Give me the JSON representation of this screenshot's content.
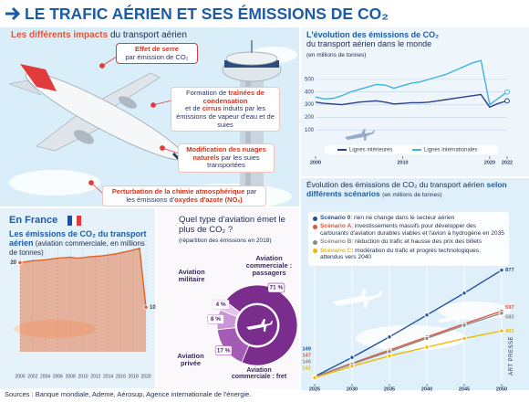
{
  "header": {
    "title": "LE TRAFIC AÉRIEN ET SES ÉMISSIONS DE CO₂"
  },
  "impacts": {
    "title": "Les différents impacts",
    "subtitle": "du transport aérien",
    "items": [
      {
        "segments": [
          "Effet de serre",
          "par émission de CO₂"
        ]
      },
      {
        "segments": [
          "Formation de ",
          "traînées de condensation",
          "et de ",
          "cirrus",
          " induits par les émissions de vapeur d'eau et de suies"
        ]
      },
      {
        "segments": [
          "Modification des nuages naturels",
          " par les suies transportées"
        ]
      },
      {
        "segments": [
          "Perturbation de la chimie atmosphérique",
          " par les émissions d'",
          "oxydes d'azote (NOₓ)"
        ]
      }
    ]
  },
  "chart_data": [
    {
      "type": "line",
      "title": "L'évolution des émissions de CO₂",
      "subtitle": "du transport aérien dans le monde",
      "unit": "(en millions de tonnes)",
      "x": [
        2000,
        2001,
        2002,
        2003,
        2004,
        2005,
        2006,
        2007,
        2008,
        2009,
        2010,
        2011,
        2012,
        2013,
        2014,
        2015,
        2016,
        2017,
        2018,
        2019,
        2020,
        2021,
        2022
      ],
      "xlim": [
        2000,
        2022
      ],
      "xticks": [
        2000,
        2010,
        2020,
        2022
      ],
      "ylim": [
        0,
        680
      ],
      "yticks": [
        100,
        200,
        300,
        400,
        500
      ],
      "grid": true,
      "series": [
        {
          "name": "Lignes intérieures",
          "color": "#2b3f8c",
          "values": [
            320,
            310,
            305,
            300,
            310,
            320,
            325,
            330,
            320,
            305,
            310,
            315,
            315,
            320,
            330,
            340,
            350,
            360,
            370,
            380,
            280,
            310,
            330
          ]
        },
        {
          "name": "Lignes internationales",
          "color": "#3fb3e0",
          "values": [
            360,
            345,
            350,
            370,
            400,
            420,
            440,
            460,
            455,
            430,
            450,
            470,
            480,
            500,
            520,
            540,
            570,
            600,
            630,
            650,
            300,
            350,
            400
          ]
        }
      ]
    },
    {
      "type": "area",
      "header": "En France",
      "title": "Les émissions de CO₂ du transport aérien",
      "subtitle": "(aviation commerciale, en millions de tonnes)",
      "x": [
        2000,
        2001,
        2002,
        2003,
        2004,
        2005,
        2006,
        2007,
        2008,
        2009,
        2010,
        2011,
        2012,
        2013,
        2014,
        2015,
        2016,
        2017,
        2018,
        2019,
        2020
      ],
      "xlim": [
        2000,
        2020
      ],
      "xticks": [
        2000,
        2002,
        2004,
        2006,
        2008,
        2010,
        2012,
        2014,
        2016,
        2018,
        2020
      ],
      "ylim": [
        0,
        25
      ],
      "color": "#e0622a",
      "values": [
        20,
        20.2,
        20.4,
        20.5,
        20.6,
        20.8,
        21,
        21.1,
        21.2,
        21,
        21.1,
        21.3,
        21.4,
        21.5,
        21.7,
        21.9,
        22.2,
        22.5,
        22.8,
        23.2,
        10
      ]
    },
    {
      "type": "pie",
      "title": "Quel type d'aviation émet le plus de CO₂ ?",
      "subtitle": "(répartition des émissions en 2018)",
      "categories": [
        "Aviation commerciale : passagers",
        "Aviation commerciale : fret",
        "Aviation privée",
        "Aviation militaire"
      ],
      "values": [
        71,
        17,
        8,
        4
      ],
      "value_labels": [
        "71 %",
        "17 %",
        "8 %",
        "4 %"
      ],
      "colors": [
        "#7b2d8e",
        "#a35bb5",
        "#c995d6",
        "#e2c6ea"
      ]
    },
    {
      "type": "line",
      "title": "Évolution des émissions de CO₂ du transport aérien",
      "subtitle": "selon différents scénarios",
      "unit": "(en millions de tonnes)",
      "x": [
        2025,
        2030,
        2035,
        2040,
        2045,
        2050
      ],
      "xlim": [
        2025,
        2050
      ],
      "xticks": [
        2025,
        2030,
        2035,
        2040,
        2045,
        2050
      ],
      "ylim": [
        100,
        900
      ],
      "series": [
        {
          "name": "Scénario 0",
          "description": ": rien ne change dans le secteur aérien",
          "color": "#1f4e9a",
          "values": [
            149,
            280,
            420,
            570,
            720,
            877
          ]
        },
        {
          "name": "Scénario A",
          "description": ": investissements massifs pour développer des carburants d'aviation durables viables et l'avion à hydrogène en 2035",
          "color": "#e0553a",
          "values": [
            147,
            240,
            330,
            420,
            510,
            597
          ]
        },
        {
          "name": "Scénario B",
          "description": ": réduction du trafic et hausse des prix des billets",
          "color": "#8a8a8a",
          "values": [
            146,
            235,
            320,
            410,
            500,
            582
          ]
        },
        {
          "name": "Scénario C",
          "description": ": modération du trafic et progrès technologiques, attendus vers 2040",
          "color": "#f2b900",
          "values": [
            141,
            220,
            290,
            350,
            410,
            461
          ]
        }
      ]
    }
  ],
  "sources": "Sources : Banque mondiale, Ademe, Aérosup, Agence internationale de l'énergie.",
  "credit": "ART PRESSE"
}
